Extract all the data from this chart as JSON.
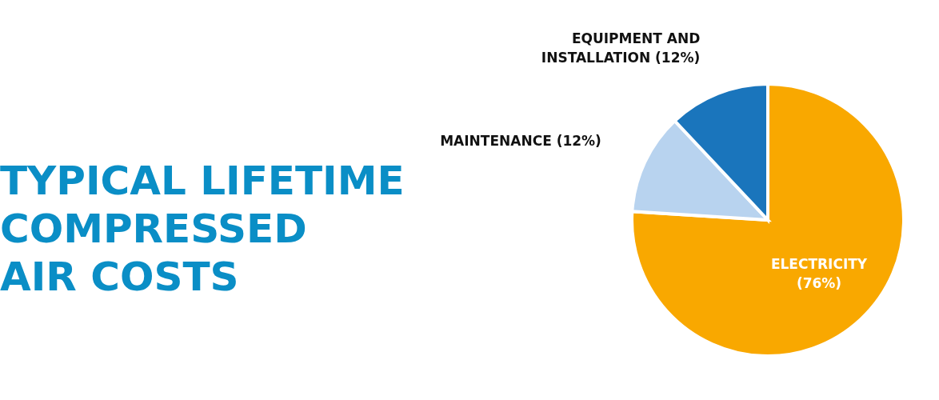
{
  "chart_data": {
    "type": "pie",
    "title": "TYPICAL LIFETIME\nCOMPRESSED\nAIR COSTS",
    "categories": [
      "ELECTRICITY",
      "MAINTENANCE",
      "EQUIPMENT AND INSTALLATION"
    ],
    "values": [
      76,
      12,
      12
    ],
    "colors": [
      "#f9a800",
      "#b8d3ef",
      "#1a75bc"
    ],
    "value_labels": [
      "(76%)",
      "(12%)",
      "(12%)"
    ],
    "legend": false
  }
}
